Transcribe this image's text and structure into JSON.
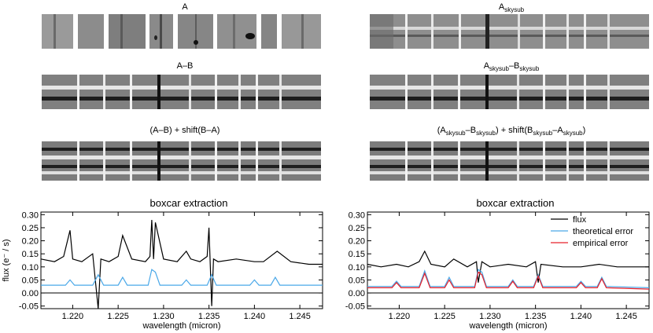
{
  "panels": {
    "a": "A",
    "a_skysub": {
      "main": "A",
      "sub": "skysub"
    },
    "amb": "A–B",
    "amb_skysub": {
      "a": "A",
      "a_sub": "skysub",
      "dash": "–B",
      "b_sub": "skysub"
    },
    "shift": "(A–B) + shift(B–A)",
    "shift_skysub": {
      "p1": "(A",
      "s1": "skysub",
      "p2": "–B",
      "s2": "skysub",
      "p3": ") + shift(B",
      "s3": "skysub",
      "p4": "–A",
      "s4": "skysub",
      "p5": ")"
    }
  },
  "chart_data": [
    {
      "type": "line",
      "title": "boxcar extraction",
      "xlabel": "wavelength (micron)",
      "ylabel": "flux (e⁻ / s)",
      "xlim": [
        1.2165,
        1.2475
      ],
      "ylim": [
        -0.06,
        0.31
      ],
      "xticks": [
        "1.220",
        "1.225",
        "1.230",
        "1.235",
        "1.240",
        "1.245"
      ],
      "xtick_values": [
        1.22,
        1.225,
        1.23,
        1.235,
        1.24,
        1.245
      ],
      "yticks": [
        "0.30",
        "0.25",
        "0.20",
        "0.15",
        "0.10",
        "0.05",
        "0.00",
        "-0.05"
      ],
      "ytick_values": [
        0.3,
        0.25,
        0.2,
        0.15,
        0.1,
        0.05,
        0.0,
        -0.05
      ],
      "series": [
        {
          "color": "#000000",
          "x": [
            1.2165,
            1.218,
            1.219,
            1.2197,
            1.22,
            1.221,
            1.2222,
            1.2228,
            1.2231,
            1.224,
            1.225,
            1.2255,
            1.2265,
            1.228,
            1.2285,
            1.2287,
            1.2289,
            1.2291,
            1.23,
            1.2315,
            1.2325,
            1.233,
            1.234,
            1.2348,
            1.235,
            1.2353,
            1.2355,
            1.236,
            1.238,
            1.24,
            1.241,
            1.2425,
            1.244,
            1.246,
            1.2475
          ],
          "y": [
            0.13,
            0.12,
            0.14,
            0.24,
            0.13,
            0.12,
            0.15,
            -0.06,
            0.13,
            0.12,
            0.14,
            0.22,
            0.13,
            0.12,
            0.14,
            0.28,
            0.13,
            0.27,
            0.13,
            0.12,
            0.16,
            0.13,
            0.12,
            0.14,
            0.25,
            -0.05,
            0.13,
            0.12,
            0.13,
            0.12,
            0.12,
            0.16,
            0.12,
            0.11,
            0.11
          ]
        },
        {
          "color": "#4aa8e8",
          "x": [
            1.2165,
            1.2192,
            1.2197,
            1.2202,
            1.2222,
            1.2228,
            1.2234,
            1.225,
            1.2255,
            1.226,
            1.2283,
            1.2287,
            1.2291,
            1.2296,
            1.232,
            1.2325,
            1.233,
            1.2348,
            1.2353,
            1.2358,
            1.2395,
            1.24,
            1.2405,
            1.2418,
            1.2423,
            1.2428,
            1.2475
          ],
          "y": [
            0.03,
            0.03,
            0.05,
            0.03,
            0.03,
            0.07,
            0.03,
            0.03,
            0.06,
            0.03,
            0.03,
            0.09,
            0.08,
            0.03,
            0.03,
            0.05,
            0.03,
            0.03,
            0.07,
            0.03,
            0.03,
            0.05,
            0.03,
            0.03,
            0.06,
            0.03,
            0.03
          ]
        }
      ]
    },
    {
      "type": "line",
      "title": "boxcar extraction",
      "xlabel": "wavelength (micron)",
      "ylabel": "",
      "xlim": [
        1.2165,
        1.2475
      ],
      "ylim": [
        -0.06,
        0.31
      ],
      "xticks": [
        "1.220",
        "1.225",
        "1.230",
        "1.235",
        "1.240",
        "1.245"
      ],
      "xtick_values": [
        1.22,
        1.225,
        1.23,
        1.235,
        1.24,
        1.245
      ],
      "yticks": [
        "0.30",
        "0.25",
        "0.20",
        "0.15",
        "0.10",
        "0.05",
        "0.00",
        "-0.05"
      ],
      "ytick_values": [
        0.3,
        0.25,
        0.2,
        0.15,
        0.1,
        0.05,
        0.0,
        -0.05
      ],
      "legend": [
        "flux",
        "theoretical error",
        "empirical error"
      ],
      "legend_position": "top-right",
      "series": [
        {
          "name": "flux",
          "color": "#000000",
          "x": [
            1.2165,
            1.218,
            1.2197,
            1.221,
            1.2222,
            1.2228,
            1.2235,
            1.225,
            1.226,
            1.2275,
            1.2285,
            1.2287,
            1.2291,
            1.23,
            1.232,
            1.234,
            1.235,
            1.2353,
            1.2356,
            1.238,
            1.24,
            1.242,
            1.244,
            1.246,
            1.2475
          ],
          "y": [
            0.11,
            0.1,
            0.11,
            0.1,
            0.12,
            0.16,
            0.11,
            0.1,
            0.13,
            0.1,
            0.12,
            0.04,
            0.12,
            0.1,
            0.11,
            0.1,
            0.12,
            0.04,
            0.11,
            0.1,
            0.1,
            0.11,
            0.1,
            0.1,
            0.1
          ]
        },
        {
          "name": "theoretical error",
          "color": "#4aa8e8",
          "x": [
            1.2165,
            1.2192,
            1.2197,
            1.2202,
            1.2222,
            1.2228,
            1.2234,
            1.225,
            1.2255,
            1.226,
            1.2283,
            1.2287,
            1.2291,
            1.2296,
            1.232,
            1.2325,
            1.233,
            1.2348,
            1.2353,
            1.2358,
            1.2395,
            1.24,
            1.2405,
            1.2418,
            1.2423,
            1.2428,
            1.2475
          ],
          "y": [
            0.025,
            0.025,
            0.045,
            0.025,
            0.025,
            0.085,
            0.025,
            0.025,
            0.06,
            0.025,
            0.025,
            0.09,
            0.08,
            0.025,
            0.025,
            0.05,
            0.025,
            0.025,
            0.07,
            0.025,
            0.025,
            0.045,
            0.025,
            0.025,
            0.06,
            0.025,
            0.02
          ]
        },
        {
          "name": "empirical error",
          "color": "#e8202a",
          "x": [
            1.2165,
            1.2192,
            1.2197,
            1.2202,
            1.2222,
            1.2228,
            1.2234,
            1.225,
            1.2255,
            1.226,
            1.2283,
            1.2287,
            1.2291,
            1.2296,
            1.232,
            1.2325,
            1.233,
            1.2348,
            1.2353,
            1.2358,
            1.2395,
            1.24,
            1.2405,
            1.2418,
            1.2423,
            1.2428,
            1.2475
          ],
          "y": [
            0.02,
            0.02,
            0.04,
            0.02,
            0.02,
            0.075,
            0.02,
            0.02,
            0.05,
            0.02,
            0.02,
            0.08,
            0.07,
            0.02,
            0.02,
            0.045,
            0.02,
            0.02,
            0.065,
            0.02,
            0.02,
            0.04,
            0.02,
            0.02,
            0.055,
            0.02,
            0.015
          ]
        }
      ]
    }
  ]
}
